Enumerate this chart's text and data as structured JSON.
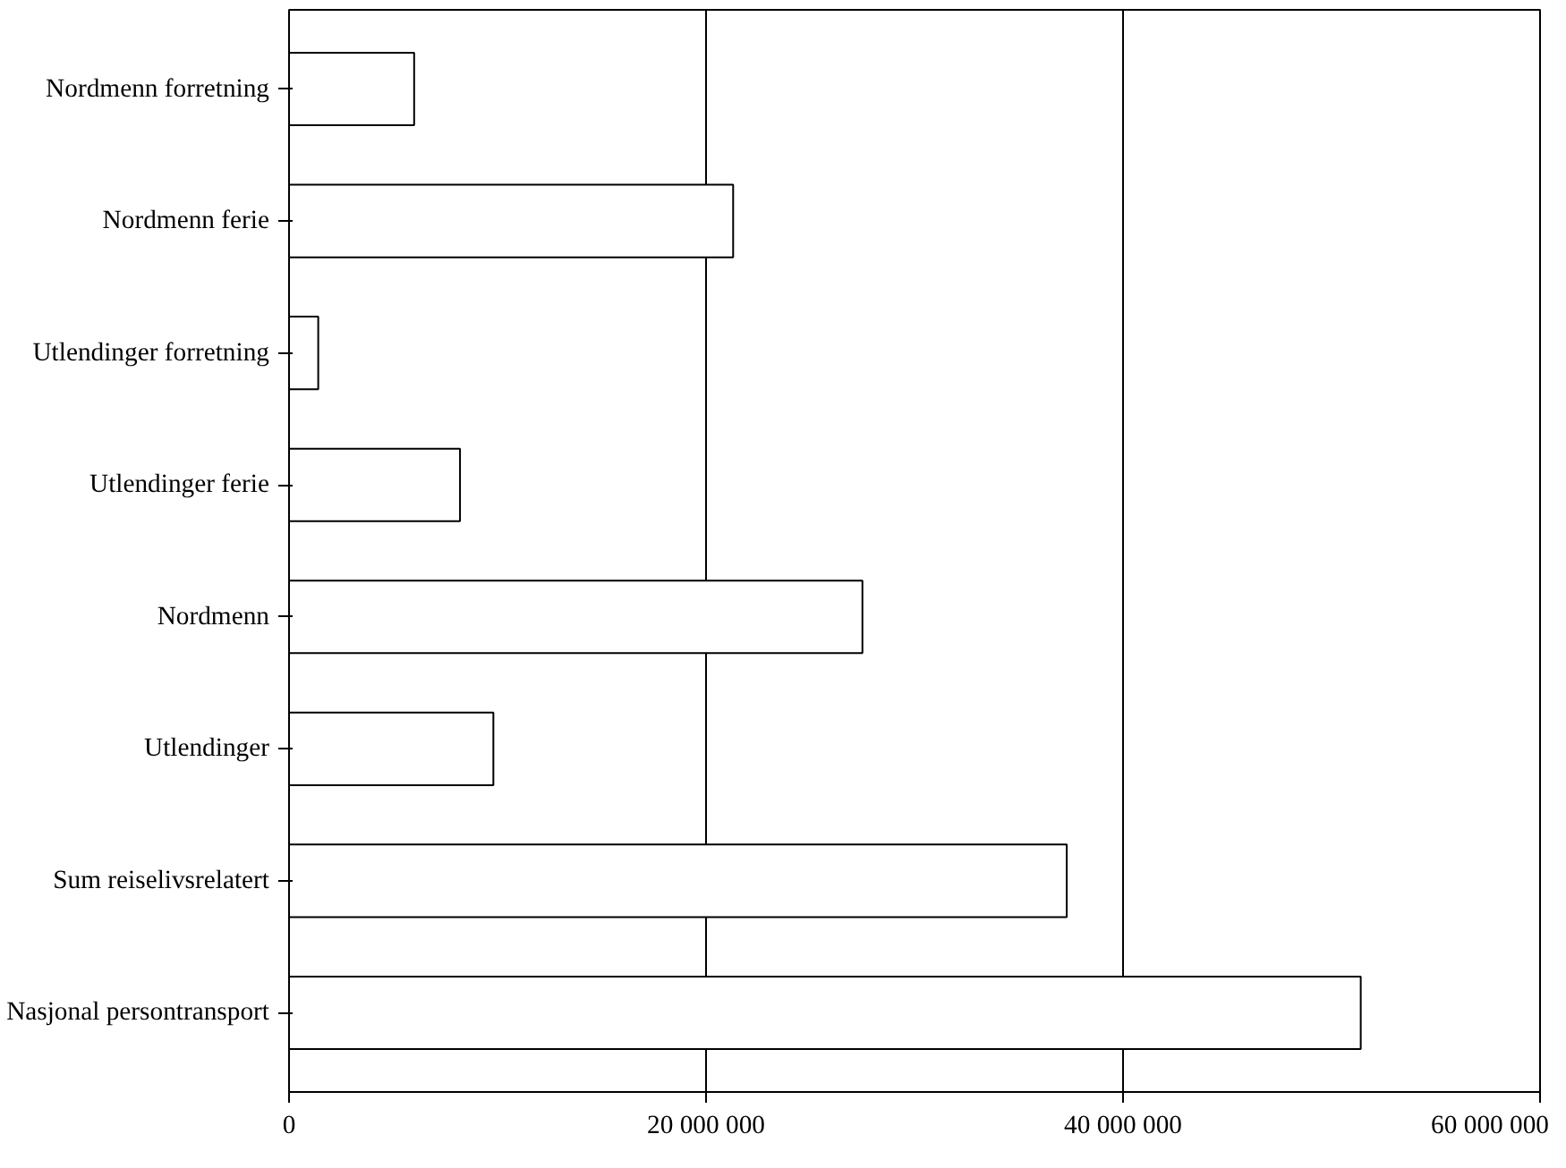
{
  "chart_data": {
    "type": "bar",
    "orientation": "horizontal",
    "categories": [
      "Nordmenn forretning",
      "Nordmenn ferie",
      "Utlendinger forretning",
      "Utlendinger ferie",
      "Nordmenn",
      "Utlendinger",
      "Sum reiselivsrelatert",
      "Nasjonal persontransport"
    ],
    "values": [
      6000000,
      21300000,
      1400000,
      8200000,
      27500000,
      9800000,
      37300000,
      51400000
    ],
    "color": "#ffffff",
    "xlim": [
      0,
      60000000
    ],
    "xticks": [
      0,
      {
        "value": 20000000,
        "label": "20 000 000"
      },
      {
        "value": 40000000,
        "label": "40 000 000"
      },
      {
        "value": 60000000,
        "label": "60 000 000"
      }
    ],
    "grid": "x"
  }
}
